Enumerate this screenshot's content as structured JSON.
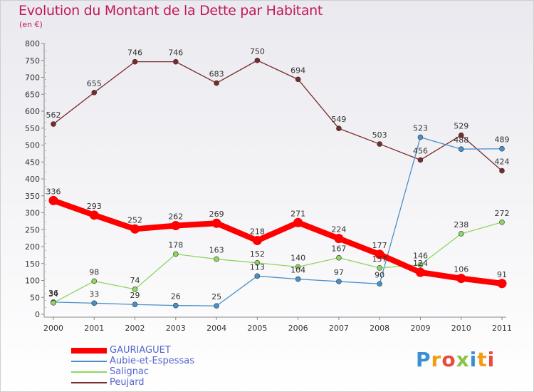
{
  "chart_data": {
    "type": "line",
    "title": "Evolution du Montant de la Dette par Habitant",
    "subtitle": "(en €)",
    "x": [
      "2000",
      "2001",
      "2002",
      "2003",
      "2004",
      "2005",
      "2006",
      "2007",
      "2008",
      "2009",
      "2010",
      "2011"
    ],
    "ylim": [
      0,
      800
    ],
    "yticks": [
      0,
      50,
      100,
      150,
      200,
      250,
      300,
      350,
      400,
      450,
      500,
      550,
      600,
      650,
      700,
      750,
      800
    ],
    "grid": false,
    "legend_position": "bottom-left",
    "series": [
      {
        "name": "GAURIAGUET",
        "color": "#ff0000",
        "values": [
          336,
          293,
          252,
          262,
          269,
          218,
          271,
          224,
          177,
          124,
          106,
          91
        ]
      },
      {
        "name": "Aubie-et-Espessas",
        "color": "#4a90c8",
        "values": [
          36,
          33,
          29,
          26,
          25,
          113,
          104,
          97,
          90,
          523,
          488,
          489
        ]
      },
      {
        "name": "Salignac",
        "color": "#8ed660",
        "values": [
          34,
          98,
          74,
          178,
          163,
          152,
          140,
          167,
          137,
          146,
          238,
          272
        ]
      },
      {
        "name": "Peujard",
        "color": "#7a2a2a",
        "values": [
          562,
          655,
          746,
          746,
          683,
          750,
          694,
          549,
          503,
          456,
          529,
          424
        ]
      }
    ],
    "labels": [
      {
        "series": 0,
        "values": [
          336,
          293,
          252,
          262,
          269,
          218,
          271,
          224,
          177,
          124,
          106,
          91
        ]
      },
      {
        "series": 1,
        "values": [
          36,
          33,
          29,
          26,
          25,
          113,
          104,
          97,
          90,
          523,
          488,
          489
        ]
      },
      {
        "series": 2,
        "values": [
          34,
          98,
          74,
          178,
          163,
          152,
          140,
          167,
          137,
          146,
          238,
          272
        ]
      },
      {
        "series": 3,
        "values": [
          562,
          655,
          746,
          746,
          683,
          750,
          694,
          549,
          503,
          456,
          529,
          424
        ]
      }
    ]
  },
  "legend": [
    {
      "label": "GAURIAGUET",
      "color": "#ff0000"
    },
    {
      "label": "Aubie-et-Espessas",
      "color": "#4a90c8"
    },
    {
      "label": "Salignac",
      "color": "#8ed660"
    },
    {
      "label": "Peujard",
      "color": "#7a2a2a"
    }
  ],
  "logo": {
    "letters": [
      "P",
      "r",
      "o",
      "x",
      "i",
      "t",
      "i"
    ]
  }
}
